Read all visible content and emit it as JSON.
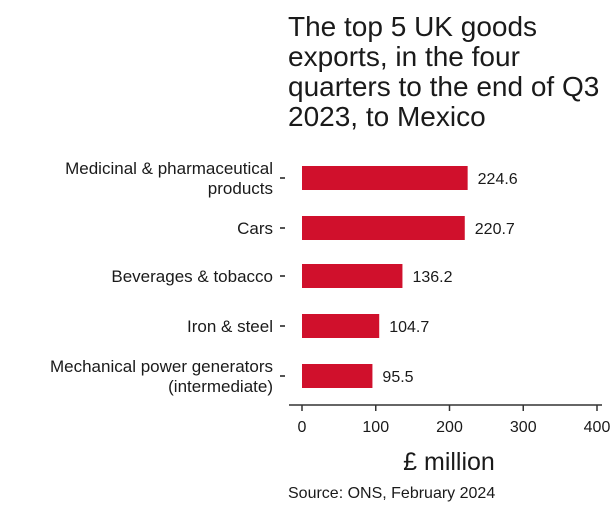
{
  "chart_data": {
    "type": "bar",
    "orientation": "horizontal",
    "title_lines": [
      "The top 5 UK goods",
      "exports, in the four",
      "quarters to the end of Q3",
      "2023, to Mexico"
    ],
    "categories": [
      [
        "Medicinal & pharmaceutical",
        "products"
      ],
      [
        "Cars"
      ],
      [
        "Beverages & tobacco"
      ],
      [
        "Iron & steel"
      ],
      [
        "Mechanical power generators",
        "(intermediate)"
      ]
    ],
    "values": [
      224.6,
      220.7,
      136.2,
      104.7,
      95.5
    ],
    "value_labels": [
      "224.6",
      "220.7",
      "136.2",
      "104.7",
      "95.5"
    ],
    "xlabel": "£ million",
    "xlim": [
      0,
      400
    ],
    "xticks": [
      0,
      100,
      200,
      300,
      400
    ],
    "xtick_labels": [
      "0",
      "100",
      "200",
      "300",
      "400"
    ],
    "grid": false,
    "legend": "none",
    "bar_color": "#d0102c",
    "source": "Source: ONS, February 2024"
  }
}
